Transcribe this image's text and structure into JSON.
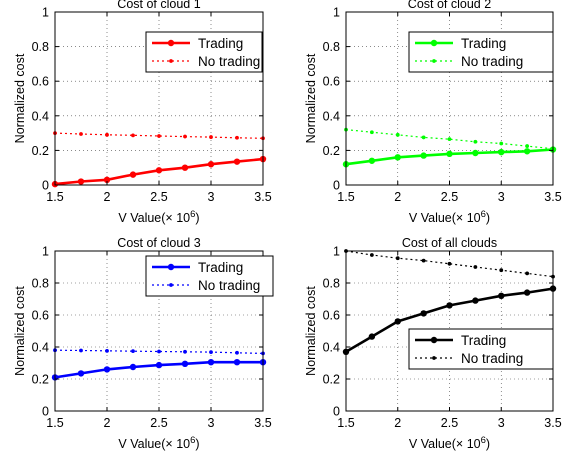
{
  "chart_data": [
    {
      "type": "line",
      "title": "Cost of cloud 1",
      "xlabel": "V Value(× 10",
      "xlabel_exponent": "6",
      "xlabel_close": ")",
      "ylabel": "Normalized cost",
      "xlim": [
        1.5,
        3.5
      ],
      "ylim": [
        0,
        1
      ],
      "xticks": [
        1.5,
        2,
        2.5,
        3,
        3.5
      ],
      "xtick_labels": [
        "1.5",
        "2",
        "2.5",
        "3",
        "3.5"
      ],
      "yticks": [
        0,
        0.2,
        0.4,
        0.6,
        0.8,
        1
      ],
      "ytick_labels": [
        "0",
        "0.2",
        "0.4",
        "0.6",
        "0.8",
        "1"
      ],
      "grid": true,
      "legend_position": "top-right",
      "x": [
        1.5,
        1.75,
        2.0,
        2.25,
        2.5,
        2.75,
        3.0,
        3.25,
        3.5
      ],
      "series": [
        {
          "name": "Trading",
          "color": "#ff0000",
          "style": "solid",
          "values": [
            0.005,
            0.02,
            0.03,
            0.06,
            0.085,
            0.1,
            0.12,
            0.135,
            0.15
          ]
        },
        {
          "name": "No trading",
          "color": "#ff0000",
          "style": "dotted",
          "values": [
            0.3,
            0.295,
            0.29,
            0.287,
            0.283,
            0.28,
            0.277,
            0.273,
            0.27
          ]
        }
      ]
    },
    {
      "type": "line",
      "title": "Cost of cloud 2",
      "xlabel": "V Value(× 10",
      "xlabel_exponent": "6",
      "xlabel_close": ")",
      "ylabel": "Normalized cost",
      "xlim": [
        1.5,
        3.5
      ],
      "ylim": [
        0,
        1
      ],
      "xticks": [
        1.5,
        2,
        2.5,
        3,
        3.5
      ],
      "xtick_labels": [
        "1.5",
        "2",
        "2.5",
        "3",
        "3.5"
      ],
      "yticks": [
        0,
        0.2,
        0.4,
        0.6,
        0.8,
        1
      ],
      "ytick_labels": [
        "0",
        "0.2",
        "0.4",
        "0.6",
        "0.8",
        "1"
      ],
      "grid": true,
      "legend_position": "top-right",
      "x": [
        1.5,
        1.75,
        2.0,
        2.25,
        2.5,
        2.75,
        3.0,
        3.25,
        3.5
      ],
      "series": [
        {
          "name": "Trading",
          "color": "#00ff00",
          "style": "solid",
          "values": [
            0.12,
            0.14,
            0.16,
            0.17,
            0.18,
            0.185,
            0.19,
            0.195,
            0.205
          ]
        },
        {
          "name": "No trading",
          "color": "#00ff00",
          "style": "dotted",
          "values": [
            0.32,
            0.305,
            0.29,
            0.275,
            0.265,
            0.25,
            0.24,
            0.225,
            0.21
          ]
        }
      ]
    },
    {
      "type": "line",
      "title": "Cost of cloud 3",
      "xlabel": "V Value(× 10",
      "xlabel_exponent": "6",
      "xlabel_close": ")",
      "ylabel": "Normalized cost",
      "xlim": [
        1.5,
        3.5
      ],
      "ylim": [
        0,
        1
      ],
      "xticks": [
        1.5,
        2,
        2.5,
        3,
        3.5
      ],
      "xtick_labels": [
        "1.5",
        "2",
        "2.5",
        "3",
        "3.5"
      ],
      "yticks": [
        0,
        0.2,
        0.4,
        0.6,
        0.8,
        1
      ],
      "ytick_labels": [
        "0",
        "0.2",
        "0.4",
        "0.6",
        "0.8",
        "1"
      ],
      "grid": true,
      "legend_position": "top-right",
      "x": [
        1.5,
        1.75,
        2.0,
        2.25,
        2.5,
        2.75,
        3.0,
        3.25,
        3.5
      ],
      "series": [
        {
          "name": "Trading",
          "color": "#0000ff",
          "style": "solid",
          "values": [
            0.21,
            0.235,
            0.26,
            0.275,
            0.287,
            0.295,
            0.305,
            0.305,
            0.305
          ]
        },
        {
          "name": "No trading",
          "color": "#0000ff",
          "style": "dotted",
          "values": [
            0.38,
            0.378,
            0.376,
            0.374,
            0.372,
            0.37,
            0.368,
            0.364,
            0.36
          ]
        }
      ]
    },
    {
      "type": "line",
      "title": "Cost of all clouds",
      "xlabel": "V Value(× 10",
      "xlabel_exponent": "6",
      "xlabel_close": ")",
      "ylabel": "Normalized cost",
      "xlim": [
        1.5,
        3.5
      ],
      "ylim": [
        0,
        1
      ],
      "xticks": [
        1.5,
        2,
        2.5,
        3,
        3.5
      ],
      "xtick_labels": [
        "1.5",
        "2",
        "2.5",
        "3",
        "3.5"
      ],
      "yticks": [
        0,
        0.2,
        0.4,
        0.6,
        0.8,
        1
      ],
      "ytick_labels": [
        "0",
        "0.2",
        "0.4",
        "0.6",
        "0.8",
        "1"
      ],
      "grid": true,
      "legend_position": "bottom-right",
      "x": [
        1.5,
        1.75,
        2.0,
        2.25,
        2.5,
        2.75,
        3.0,
        3.25,
        3.5
      ],
      "series": [
        {
          "name": "Trading",
          "color": "#000000",
          "style": "solid",
          "values": [
            0.37,
            0.465,
            0.56,
            0.61,
            0.66,
            0.69,
            0.72,
            0.74,
            0.765
          ]
        },
        {
          "name": "No trading",
          "color": "#000000",
          "style": "dotted",
          "values": [
            1.0,
            0.975,
            0.955,
            0.94,
            0.92,
            0.9,
            0.88,
            0.86,
            0.84
          ]
        }
      ]
    }
  ]
}
